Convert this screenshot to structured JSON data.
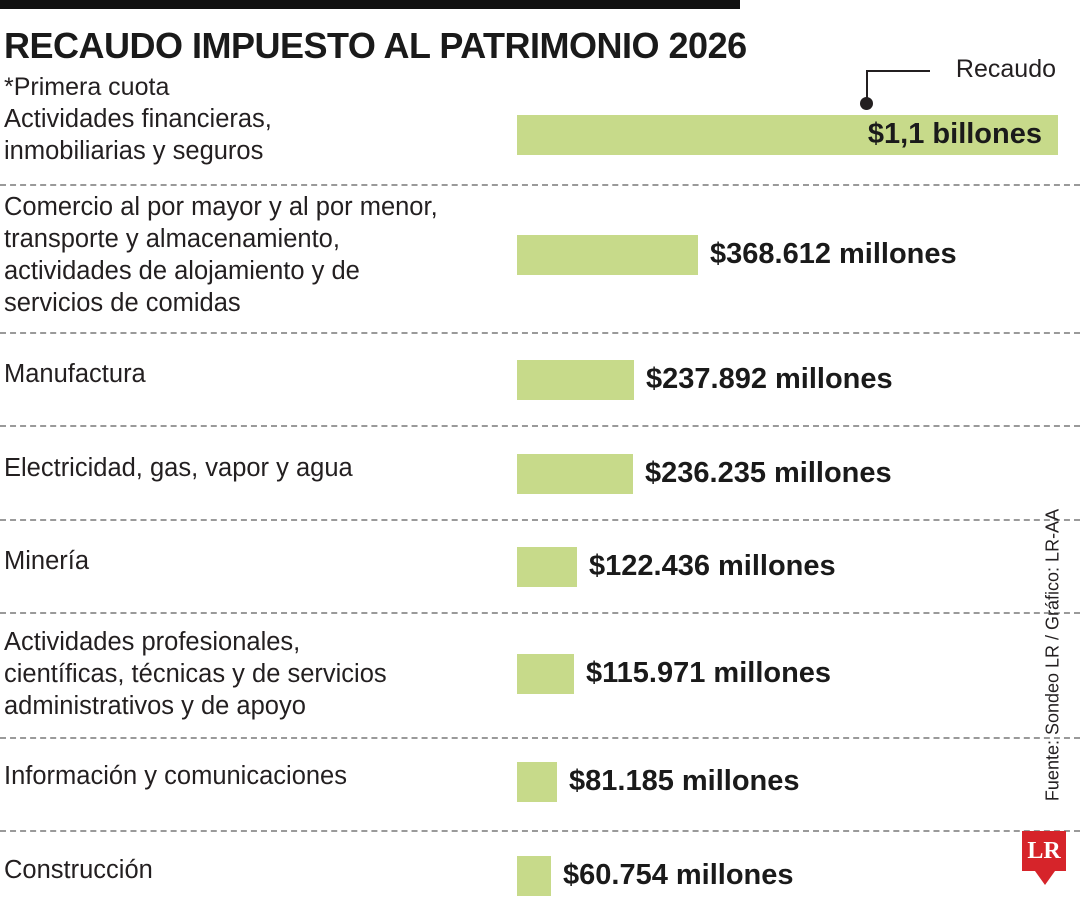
{
  "header": {
    "title": "RECAUDO IMPUESTO AL PATRIMONIO 2026",
    "subtitle": "*Primera cuota",
    "legend_label": "Recaudo"
  },
  "footer": {
    "source": "Fuente: Sondeo LR / Gráfico: LR-AA",
    "logo_text": "LR"
  },
  "colors": {
    "bar": "#c7da8a",
    "logo": "#d6242a",
    "separator": "#9a9a9a"
  },
  "chart_data": {
    "type": "bar",
    "orientation": "horizontal",
    "title": "RECAUDO IMPUESTO AL PATRIMONIO 2026",
    "subtitle": "*Primera cuota",
    "series": [
      {
        "name": "Recaudo",
        "unit": "millones de pesos",
        "values": [
          1100000,
          368612,
          237892,
          236235,
          122436,
          115971,
          81185,
          60754
        ]
      }
    ],
    "categories": [
      "Actividades financieras, inmobiliarias y seguros",
      "Comercio al por mayor y al por menor, transporte y almacenamiento, actividades de alojamiento y de servicios de comidas",
      "Manufactura",
      "Electricidad, gas, vapor y agua",
      "Minería",
      "Actividades profesionales, científicas, técnicas y de servicios administrativos y de apoyo",
      "Información y comunicaciones",
      "Construcción"
    ],
    "data_labels": [
      "$1,1 billones",
      "$368.612 millones",
      "$237.892 millones",
      "$236.235 millones",
      "$122.436 millones",
      "$115.971 millones",
      "$81.185 millones",
      "$60.754 millones"
    ],
    "grid": false,
    "legend": "top-right"
  }
}
